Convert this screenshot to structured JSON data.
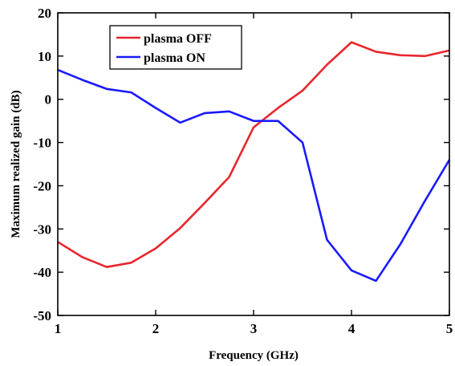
{
  "chart_data": {
    "type": "line",
    "title": "",
    "xlabel": "Frequency (GHz)",
    "ylabel": "Maximum realized gain (dB)",
    "xlim": [
      1,
      5
    ],
    "ylim": [
      -50,
      20
    ],
    "xticks": [
      1,
      2,
      3,
      4,
      5
    ],
    "yticks": [
      -50,
      -40,
      -30,
      -20,
      -10,
      0,
      10,
      20
    ],
    "grid": false,
    "legend_position": "top-left",
    "series": [
      {
        "name": "plasma OFF",
        "color": "#e8262d",
        "x": [
          1,
          1.25,
          1.5,
          1.75,
          2,
          2.25,
          2.5,
          2.75,
          3,
          3.25,
          3.5,
          3.75,
          4,
          4.25,
          4.5,
          4.75,
          5
        ],
        "y": [
          -33,
          -36.5,
          -38.8,
          -37.8,
          -34.5,
          -29.8,
          -24,
          -18,
          -6.5,
          -2,
          2,
          8,
          13.2,
          11,
          10.2,
          10,
          11.3
        ]
      },
      {
        "name": "plasma ON",
        "color": "#1a1aff",
        "x": [
          1,
          1.25,
          1.5,
          1.75,
          2,
          2.25,
          2.5,
          2.75,
          3,
          3.25,
          3.5,
          3.75,
          4,
          4.25,
          4.5,
          4.75,
          5
        ],
        "y": [
          6.8,
          4.5,
          2.4,
          1.6,
          -2,
          -5.4,
          -3.2,
          -2.8,
          -5,
          -5,
          -10,
          -32.5,
          -39.6,
          -42,
          -33.5,
          -23.5,
          -14
        ]
      }
    ]
  }
}
